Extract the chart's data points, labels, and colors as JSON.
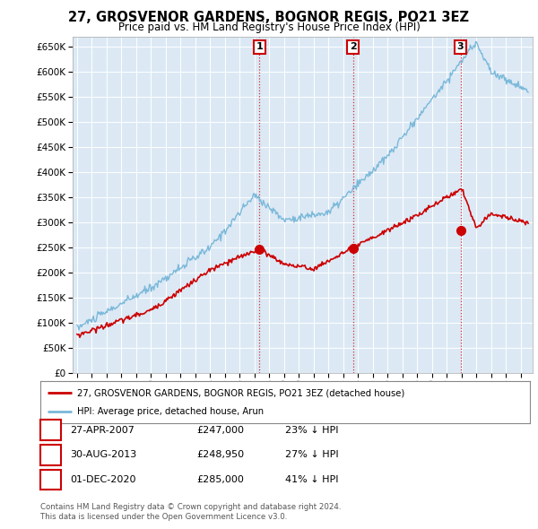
{
  "title": "27, GROSVENOR GARDENS, BOGNOR REGIS, PO21 3EZ",
  "subtitle": "Price paid vs. HM Land Registry's House Price Index (HPI)",
  "hpi_color": "#7ab8d9",
  "price_color": "#cc0000",
  "background_color": "#dce9f5",
  "plot_bg_color": "#dce9f5",
  "ylim": [
    0,
    670000
  ],
  "yticks": [
    0,
    50000,
    100000,
    150000,
    200000,
    250000,
    300000,
    350000,
    400000,
    450000,
    500000,
    550000,
    600000,
    650000
  ],
  "sale_points": [
    {
      "label": "1",
      "date_num": 2007.32,
      "price": 247000
    },
    {
      "label": "2",
      "date_num": 2013.66,
      "price": 248950
    },
    {
      "label": "3",
      "date_num": 2020.92,
      "price": 285000
    }
  ],
  "table_rows": [
    {
      "num": "1",
      "date": "27-APR-2007",
      "price": "£247,000",
      "pct": "23% ↓ HPI"
    },
    {
      "num": "2",
      "date": "30-AUG-2013",
      "price": "£248,950",
      "pct": "27% ↓ HPI"
    },
    {
      "num": "3",
      "date": "01-DEC-2020",
      "price": "£285,000",
      "pct": "41% ↓ HPI"
    }
  ],
  "legend_line1": "27, GROSVENOR GARDENS, BOGNOR REGIS, PO21 3EZ (detached house)",
  "legend_line2": "HPI: Average price, detached house, Arun",
  "footnote1": "Contains HM Land Registry data © Crown copyright and database right 2024.",
  "footnote2": "This data is licensed under the Open Government Licence v3.0."
}
